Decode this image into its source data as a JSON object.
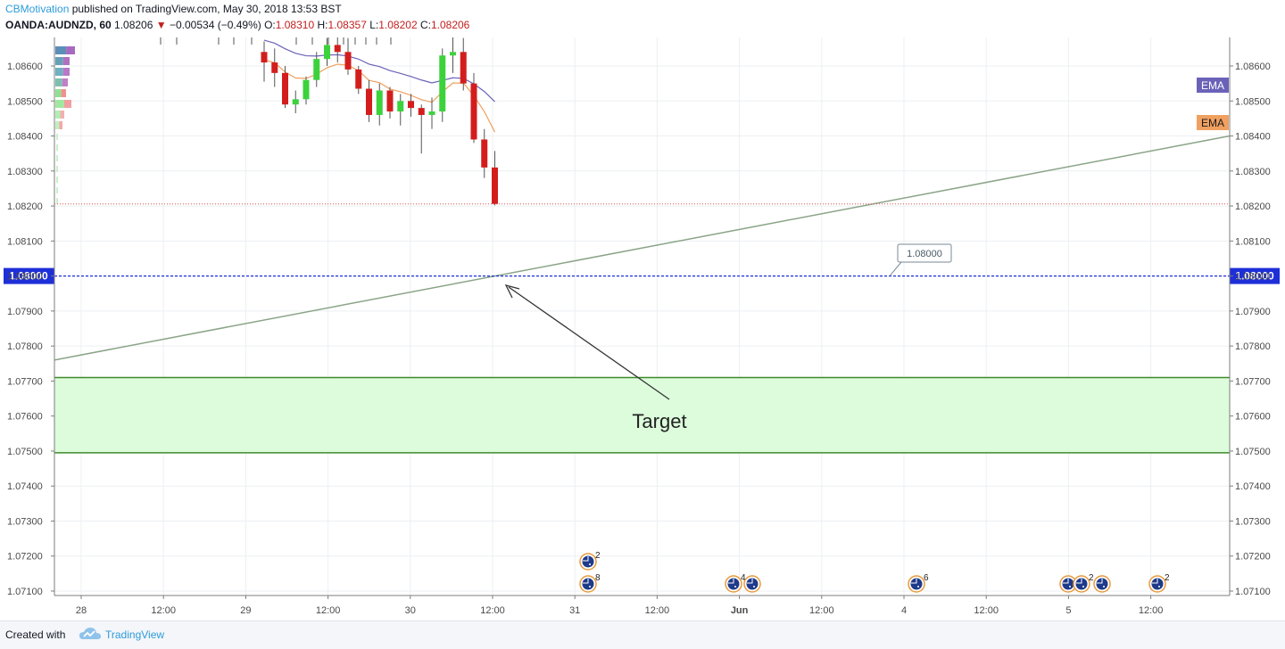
{
  "header": {
    "author": "CBMotivation",
    "published": " published on TradingView.com, May 30, 2018 13:53 BST",
    "symbol": "OANDA:AUDNZD, 60",
    "last": "1.08206",
    "change_arrow": "▼",
    "change": "−0.00534 (−0.49%)",
    "o_label": "O:",
    "o_value": "1.08310",
    "h_label": "H:",
    "h_value": "1.08357",
    "l_label": "L:",
    "l_value": "1.08202",
    "c_label": "C:",
    "c_value": "1.08206"
  },
  "footer": {
    "created_with": "Created with",
    "brand": "TradingView"
  },
  "colors": {
    "up": "#3cd23c",
    "down": "#d31d1d",
    "ema_fast": "#f0a060",
    "ema_slow": "#6a62b8",
    "trendline": "#8aa487",
    "level": "#1e2fd8",
    "zone_fill": "#dcfcdc",
    "zone_border": "#3f8a2c"
  },
  "chart_data": {
    "type": "candlestick",
    "symbol": "OANDA:AUDNZD",
    "timeframe": "60",
    "y_ticks": [
      1.086,
      1.085,
      1.084,
      1.083,
      1.082,
      1.081,
      1.08,
      1.079,
      1.078,
      1.077,
      1.076,
      1.075,
      1.074,
      1.073,
      1.072,
      1.071
    ],
    "y_tick_labels": [
      "1.08600",
      "1.08500",
      "1.08400",
      "1.08300",
      "1.08200",
      "1.08100",
      "1.08000",
      "1.07900",
      "1.07800",
      "1.07700",
      "1.07600",
      "1.07500",
      "1.07400",
      "1.07300",
      "1.07200",
      "1.07100"
    ],
    "ylim": [
      1.0705,
      1.0873
    ],
    "x_ticks": [
      "28",
      "12:00",
      "29",
      "12:00",
      "30",
      "12:00",
      "31",
      "12:00",
      "Jun",
      "12:00",
      "4",
      "12:00",
      "5",
      "12:00"
    ],
    "x_tick_bold": [
      "Jun"
    ],
    "candles": [
      {
        "o": 1.0864,
        "h": 1.0867,
        "l": 1.08555,
        "c": 1.0861
      },
      {
        "o": 1.0861,
        "h": 1.0865,
        "l": 1.0854,
        "c": 1.0858
      },
      {
        "o": 1.0858,
        "h": 1.086,
        "l": 1.0848,
        "c": 1.0849
      },
      {
        "o": 1.0849,
        "h": 1.0853,
        "l": 1.08465,
        "c": 1.08505
      },
      {
        "o": 1.08505,
        "h": 1.0857,
        "l": 1.0849,
        "c": 1.0856
      },
      {
        "o": 1.0856,
        "h": 1.0864,
        "l": 1.0854,
        "c": 1.0862
      },
      {
        "o": 1.0862,
        "h": 1.0868,
        "l": 1.086,
        "c": 1.0866
      },
      {
        "o": 1.0866,
        "h": 1.0869,
        "l": 1.0861,
        "c": 1.0864
      },
      {
        "o": 1.0864,
        "h": 1.0868,
        "l": 1.08575,
        "c": 1.0859
      },
      {
        "o": 1.0859,
        "h": 1.086,
        "l": 1.0852,
        "c": 1.08535
      },
      {
        "o": 1.08535,
        "h": 1.0856,
        "l": 1.0844,
        "c": 1.0846
      },
      {
        "o": 1.0846,
        "h": 1.0855,
        "l": 1.0843,
        "c": 1.0853
      },
      {
        "o": 1.0853,
        "h": 1.0854,
        "l": 1.0845,
        "c": 1.0847
      },
      {
        "o": 1.0847,
        "h": 1.0852,
        "l": 1.0843,
        "c": 1.085
      },
      {
        "o": 1.085,
        "h": 1.0852,
        "l": 1.08455,
        "c": 1.0848
      },
      {
        "o": 1.0848,
        "h": 1.0849,
        "l": 1.0835,
        "c": 1.0846
      },
      {
        "o": 1.0846,
        "h": 1.0851,
        "l": 1.0842,
        "c": 1.0847
      },
      {
        "o": 1.0847,
        "h": 1.0865,
        "l": 1.0844,
        "c": 1.0863
      },
      {
        "o": 1.0863,
        "h": 1.0869,
        "l": 1.0858,
        "c": 1.0864
      },
      {
        "o": 1.0864,
        "h": 1.0868,
        "l": 1.0853,
        "c": 1.0855
      },
      {
        "o": 1.0855,
        "h": 1.0858,
        "l": 1.0838,
        "c": 1.0839
      },
      {
        "o": 1.0839,
        "h": 1.0842,
        "l": 1.0828,
        "c": 1.0831
      },
      {
        "o": 1.0831,
        "h": 1.08357,
        "l": 1.08202,
        "c": 1.08206
      }
    ],
    "ema_fast_label": "EMA",
    "ema_slow_label": "EMA",
    "trendline": {
      "start": 1.0776,
      "end": 1.084
    },
    "level_price": 1.08,
    "level_label": "1.08000",
    "last_price": 1.08206,
    "zone": {
      "top": 1.0771,
      "bottom": 1.07495
    },
    "annotation": "Target",
    "events_row1": [
      {
        "count": "2"
      }
    ],
    "events_row2": [
      {
        "count": "8"
      },
      {
        "count": "4"
      },
      {
        "count": ""
      },
      {
        "count": "6"
      },
      {
        "count": ""
      },
      {
        "count": "2"
      },
      {
        "count": ""
      },
      {
        "count": "2"
      }
    ]
  }
}
